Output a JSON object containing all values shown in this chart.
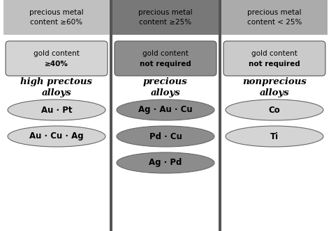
{
  "columns": [
    {
      "header": "precious metal\ncontent ≥60%",
      "header_bg": "#c0c0c0",
      "gold_line1": "gold content",
      "gold_line2": "≥40%",
      "gold_box_bg": "#d4d4d4",
      "label": "high prectous\nalloys",
      "ellipses": [
        "Au · Pt",
        "Au · Cu · Ag"
      ],
      "ellipse_bg": "#d4d4d4"
    },
    {
      "header": "precious metal\ncontent ≥25%",
      "header_bg": "#787878",
      "gold_line1": "gold content",
      "gold_line2": "not required",
      "gold_box_bg": "#8c8c8c",
      "label": "precious\nalloys",
      "ellipses": [
        "Ag · Au · Cu",
        "Pd · Cu",
        "Ag · Pd"
      ],
      "ellipse_bg": "#8c8c8c"
    },
    {
      "header": "precious metal\ncontent < 25%",
      "header_bg": "#ababab",
      "gold_line1": "gold content",
      "gold_line2": "not required",
      "gold_box_bg": "#cacaca",
      "label": "nonprecious\nalloys",
      "ellipses": [
        "Co",
        "Ti"
      ],
      "ellipse_bg": "#d4d4d4"
    }
  ],
  "separator_color": "#555555",
  "bg_color": "#ffffff",
  "header_font_size": 7.5,
  "gold_font_size": 7.5,
  "label_font_size": 9.5,
  "ellipse_font_size": 8.5
}
